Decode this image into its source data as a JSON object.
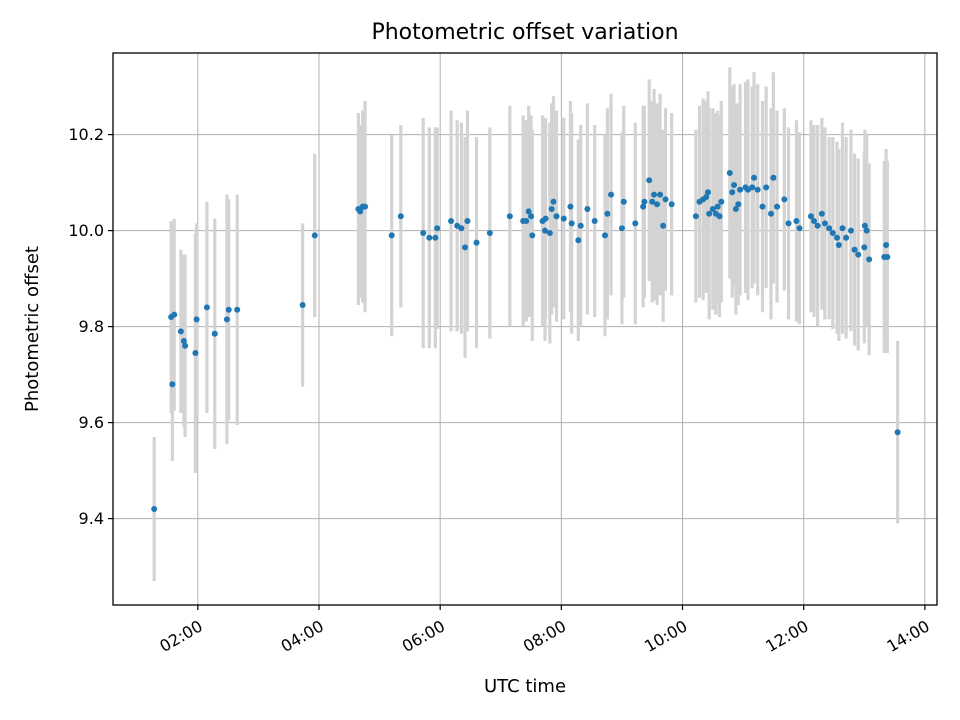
{
  "chart_data": {
    "type": "scatter",
    "title": "Photometric offset variation",
    "xlabel": "UTC time",
    "ylabel": "Photometric offset",
    "x_unit": "hours",
    "xlim": [
      0.6,
      14.2
    ],
    "ylim": [
      9.22,
      10.37
    ],
    "x_ticks": [
      2,
      4,
      6,
      8,
      10,
      12,
      14
    ],
    "x_tick_labels": [
      "02:00",
      "04:00",
      "06:00",
      "08:00",
      "10:00",
      "12:00",
      "14:00"
    ],
    "y_ticks": [
      9.4,
      9.6,
      9.8,
      10.0,
      10.2
    ],
    "y_tick_labels": [
      "9.4",
      "9.6",
      "9.8",
      "10.0",
      "10.2"
    ],
    "grid": true,
    "colors": {
      "point": "#1f77b4",
      "errorbar": "#d3d3d3",
      "grid": "#b0b0b0"
    },
    "series": [
      {
        "points": [
          [
            1.28,
            9.42,
            0.15
          ],
          [
            1.56,
            9.82,
            0.2
          ],
          [
            1.58,
            9.68,
            0.16
          ],
          [
            1.61,
            9.825,
            0.2
          ],
          [
            1.72,
            9.79,
            0.17
          ],
          [
            1.77,
            9.77,
            0.18
          ],
          [
            1.79,
            9.76,
            0.19
          ],
          [
            1.96,
            9.745,
            0.25
          ],
          [
            1.98,
            9.815,
            0.2
          ],
          [
            2.15,
            9.84,
            0.22
          ],
          [
            2.28,
            9.785,
            0.24
          ],
          [
            2.48,
            9.815,
            0.26
          ],
          [
            2.51,
            9.835,
            0.23
          ],
          [
            2.65,
            9.835,
            0.24
          ],
          [
            3.73,
            9.845,
            0.17
          ],
          [
            3.93,
            9.99,
            0.17
          ],
          [
            4.65,
            10.045,
            0.2
          ],
          [
            4.68,
            10.04,
            0.18
          ],
          [
            4.72,
            10.05,
            0.2
          ],
          [
            4.76,
            10.05,
            0.22
          ],
          [
            5.2,
            9.99,
            0.21
          ],
          [
            5.35,
            10.03,
            0.19
          ],
          [
            5.72,
            9.995,
            0.24
          ],
          [
            5.82,
            9.985,
            0.23
          ],
          [
            5.92,
            9.985,
            0.23
          ],
          [
            5.95,
            10.005,
            0.21
          ],
          [
            6.18,
            10.02,
            0.23
          ],
          [
            6.28,
            10.01,
            0.22
          ],
          [
            6.35,
            10.005,
            0.22
          ],
          [
            6.41,
            9.965,
            0.23
          ],
          [
            6.45,
            10.02,
            0.23
          ],
          [
            6.6,
            9.975,
            0.22
          ],
          [
            6.82,
            9.995,
            0.22
          ],
          [
            7.15,
            10.03,
            0.23
          ],
          [
            7.37,
            10.02,
            0.22
          ],
          [
            7.42,
            10.02,
            0.21
          ],
          [
            7.46,
            10.04,
            0.22
          ],
          [
            7.5,
            10.03,
            0.21
          ],
          [
            7.52,
            9.99,
            0.22
          ],
          [
            7.69,
            10.02,
            0.22
          ],
          [
            7.73,
            10.0,
            0.23
          ],
          [
            7.74,
            10.025,
            0.21
          ],
          [
            7.81,
            9.995,
            0.23
          ],
          [
            7.84,
            10.045,
            0.22
          ],
          [
            7.87,
            10.06,
            0.22
          ],
          [
            7.92,
            10.03,
            0.22
          ],
          [
            8.04,
            10.025,
            0.21
          ],
          [
            8.15,
            10.05,
            0.22
          ],
          [
            8.17,
            10.015,
            0.23
          ],
          [
            8.28,
            9.98,
            0.21
          ],
          [
            8.32,
            10.01,
            0.21
          ],
          [
            8.43,
            10.045,
            0.22
          ],
          [
            8.55,
            10.02,
            0.2
          ],
          [
            8.72,
            9.99,
            0.21
          ],
          [
            8.76,
            10.035,
            0.22
          ],
          [
            8.82,
            10.075,
            0.21
          ],
          [
            9.0,
            10.005,
            0.2
          ],
          [
            9.03,
            10.06,
            0.2
          ],
          [
            9.22,
            10.015,
            0.21
          ],
          [
            9.35,
            10.05,
            0.21
          ],
          [
            9.37,
            10.06,
            0.2
          ],
          [
            9.45,
            10.105,
            0.21
          ],
          [
            9.5,
            10.06,
            0.21
          ],
          [
            9.53,
            10.075,
            0.22
          ],
          [
            9.58,
            10.055,
            0.21
          ],
          [
            9.63,
            10.075,
            0.21
          ],
          [
            9.68,
            10.01,
            0.2
          ],
          [
            9.72,
            10.065,
            0.19
          ],
          [
            9.82,
            10.055,
            0.19
          ],
          [
            10.22,
            10.03,
            0.18
          ],
          [
            10.28,
            10.06,
            0.2
          ],
          [
            10.34,
            10.065,
            0.21
          ],
          [
            10.39,
            10.07,
            0.2
          ],
          [
            10.42,
            10.08,
            0.21
          ],
          [
            10.44,
            10.035,
            0.22
          ],
          [
            10.5,
            10.045,
            0.21
          ],
          [
            10.55,
            10.035,
            0.21
          ],
          [
            10.58,
            10.05,
            0.2
          ],
          [
            10.61,
            10.03,
            0.21
          ],
          [
            10.64,
            10.06,
            0.21
          ],
          [
            10.78,
            10.12,
            0.22
          ],
          [
            10.82,
            10.08,
            0.22
          ],
          [
            10.85,
            10.095,
            0.21
          ],
          [
            10.88,
            10.045,
            0.22
          ],
          [
            10.92,
            10.055,
            0.21
          ],
          [
            10.95,
            10.085,
            0.22
          ],
          [
            11.04,
            10.09,
            0.22
          ],
          [
            11.08,
            10.085,
            0.23
          ],
          [
            11.15,
            10.09,
            0.21
          ],
          [
            11.18,
            10.11,
            0.22
          ],
          [
            11.24,
            10.085,
            0.22
          ],
          [
            11.32,
            10.05,
            0.22
          ],
          [
            11.38,
            10.09,
            0.21
          ],
          [
            11.46,
            10.035,
            0.22
          ],
          [
            11.5,
            10.11,
            0.22
          ],
          [
            11.56,
            10.05,
            0.2
          ],
          [
            11.68,
            10.065,
            0.19
          ],
          [
            11.75,
            10.015,
            0.2
          ],
          [
            11.88,
            10.02,
            0.21
          ],
          [
            11.93,
            10.005,
            0.2
          ],
          [
            12.12,
            10.03,
            0.2
          ],
          [
            12.17,
            10.02,
            0.2
          ],
          [
            12.23,
            10.01,
            0.21
          ],
          [
            12.3,
            10.035,
            0.2
          ],
          [
            12.35,
            10.015,
            0.2
          ],
          [
            12.42,
            10.005,
            0.19
          ],
          [
            12.48,
            9.995,
            0.2
          ],
          [
            12.55,
            9.985,
            0.2
          ],
          [
            12.58,
            9.97,
            0.2
          ],
          [
            12.64,
            10.005,
            0.22
          ],
          [
            12.7,
            9.985,
            0.21
          ],
          [
            12.78,
            10.0,
            0.21
          ],
          [
            12.84,
            9.96,
            0.2
          ],
          [
            12.9,
            9.95,
            0.2
          ],
          [
            13.0,
            9.965,
            0.2
          ],
          [
            13.01,
            10.01,
            0.2
          ],
          [
            13.04,
            10.0,
            0.2
          ],
          [
            13.08,
            9.94,
            0.2
          ],
          [
            13.33,
            9.945,
            0.2
          ],
          [
            13.36,
            9.97,
            0.2
          ],
          [
            13.38,
            9.945,
            0.2
          ],
          [
            13.55,
            9.58,
            0.19
          ]
        ]
      }
    ]
  }
}
